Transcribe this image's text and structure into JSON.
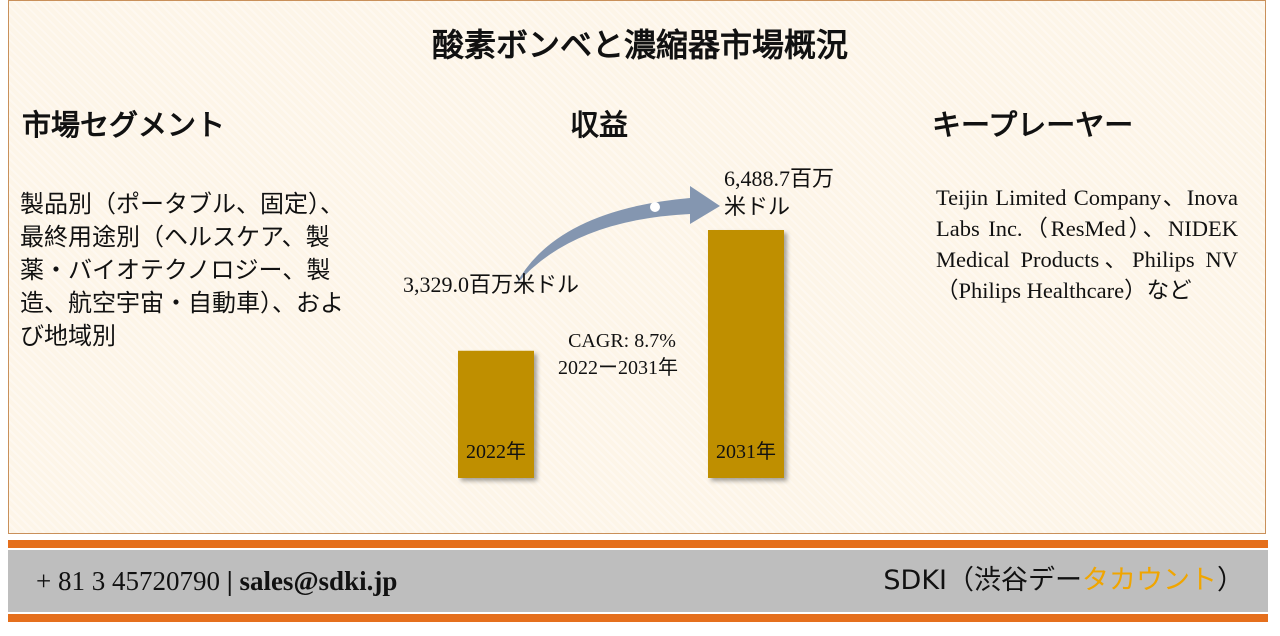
{
  "title": "酸素ボンベと濃縮器市場概況",
  "segments": {
    "heading": "市場セグメント",
    "text": "製品別（ポータブル、固定）、最終用途別（ヘルスケア、製薬・バイオテクノロジー、製造、航空宇宙・自動車）、および地域別"
  },
  "revenue": {
    "heading": "収益"
  },
  "key_players": {
    "heading": "キープレーヤー",
    "text": "Teijin Limited Company、Inova Labs Inc.（ResMed）、NIDEK Medical Products、Philips NV（Philips Healthcare）など"
  },
  "chart_data": {
    "type": "bar",
    "categories": [
      "2022年",
      "2031年"
    ],
    "values": [
      3329.0,
      6488.7
    ],
    "value_labels": [
      "3,329.0百万米ドル",
      "6,488.7百万米ドル"
    ],
    "annotation_lines": [
      "CAGR: 8.7%",
      "2022ー2031年"
    ],
    "bar_color": "#bf8f00",
    "arrow_color": "#8496b0"
  },
  "footer": {
    "phone": "+ 81 3 45720790",
    "separator": "|",
    "email": "sales@sdki.jp",
    "brand_prefix": "SDKI（渋谷デー",
    "brand_accent": "タカウント",
    "brand_suffix": "）",
    "accent_color": "#e56f1c"
  }
}
